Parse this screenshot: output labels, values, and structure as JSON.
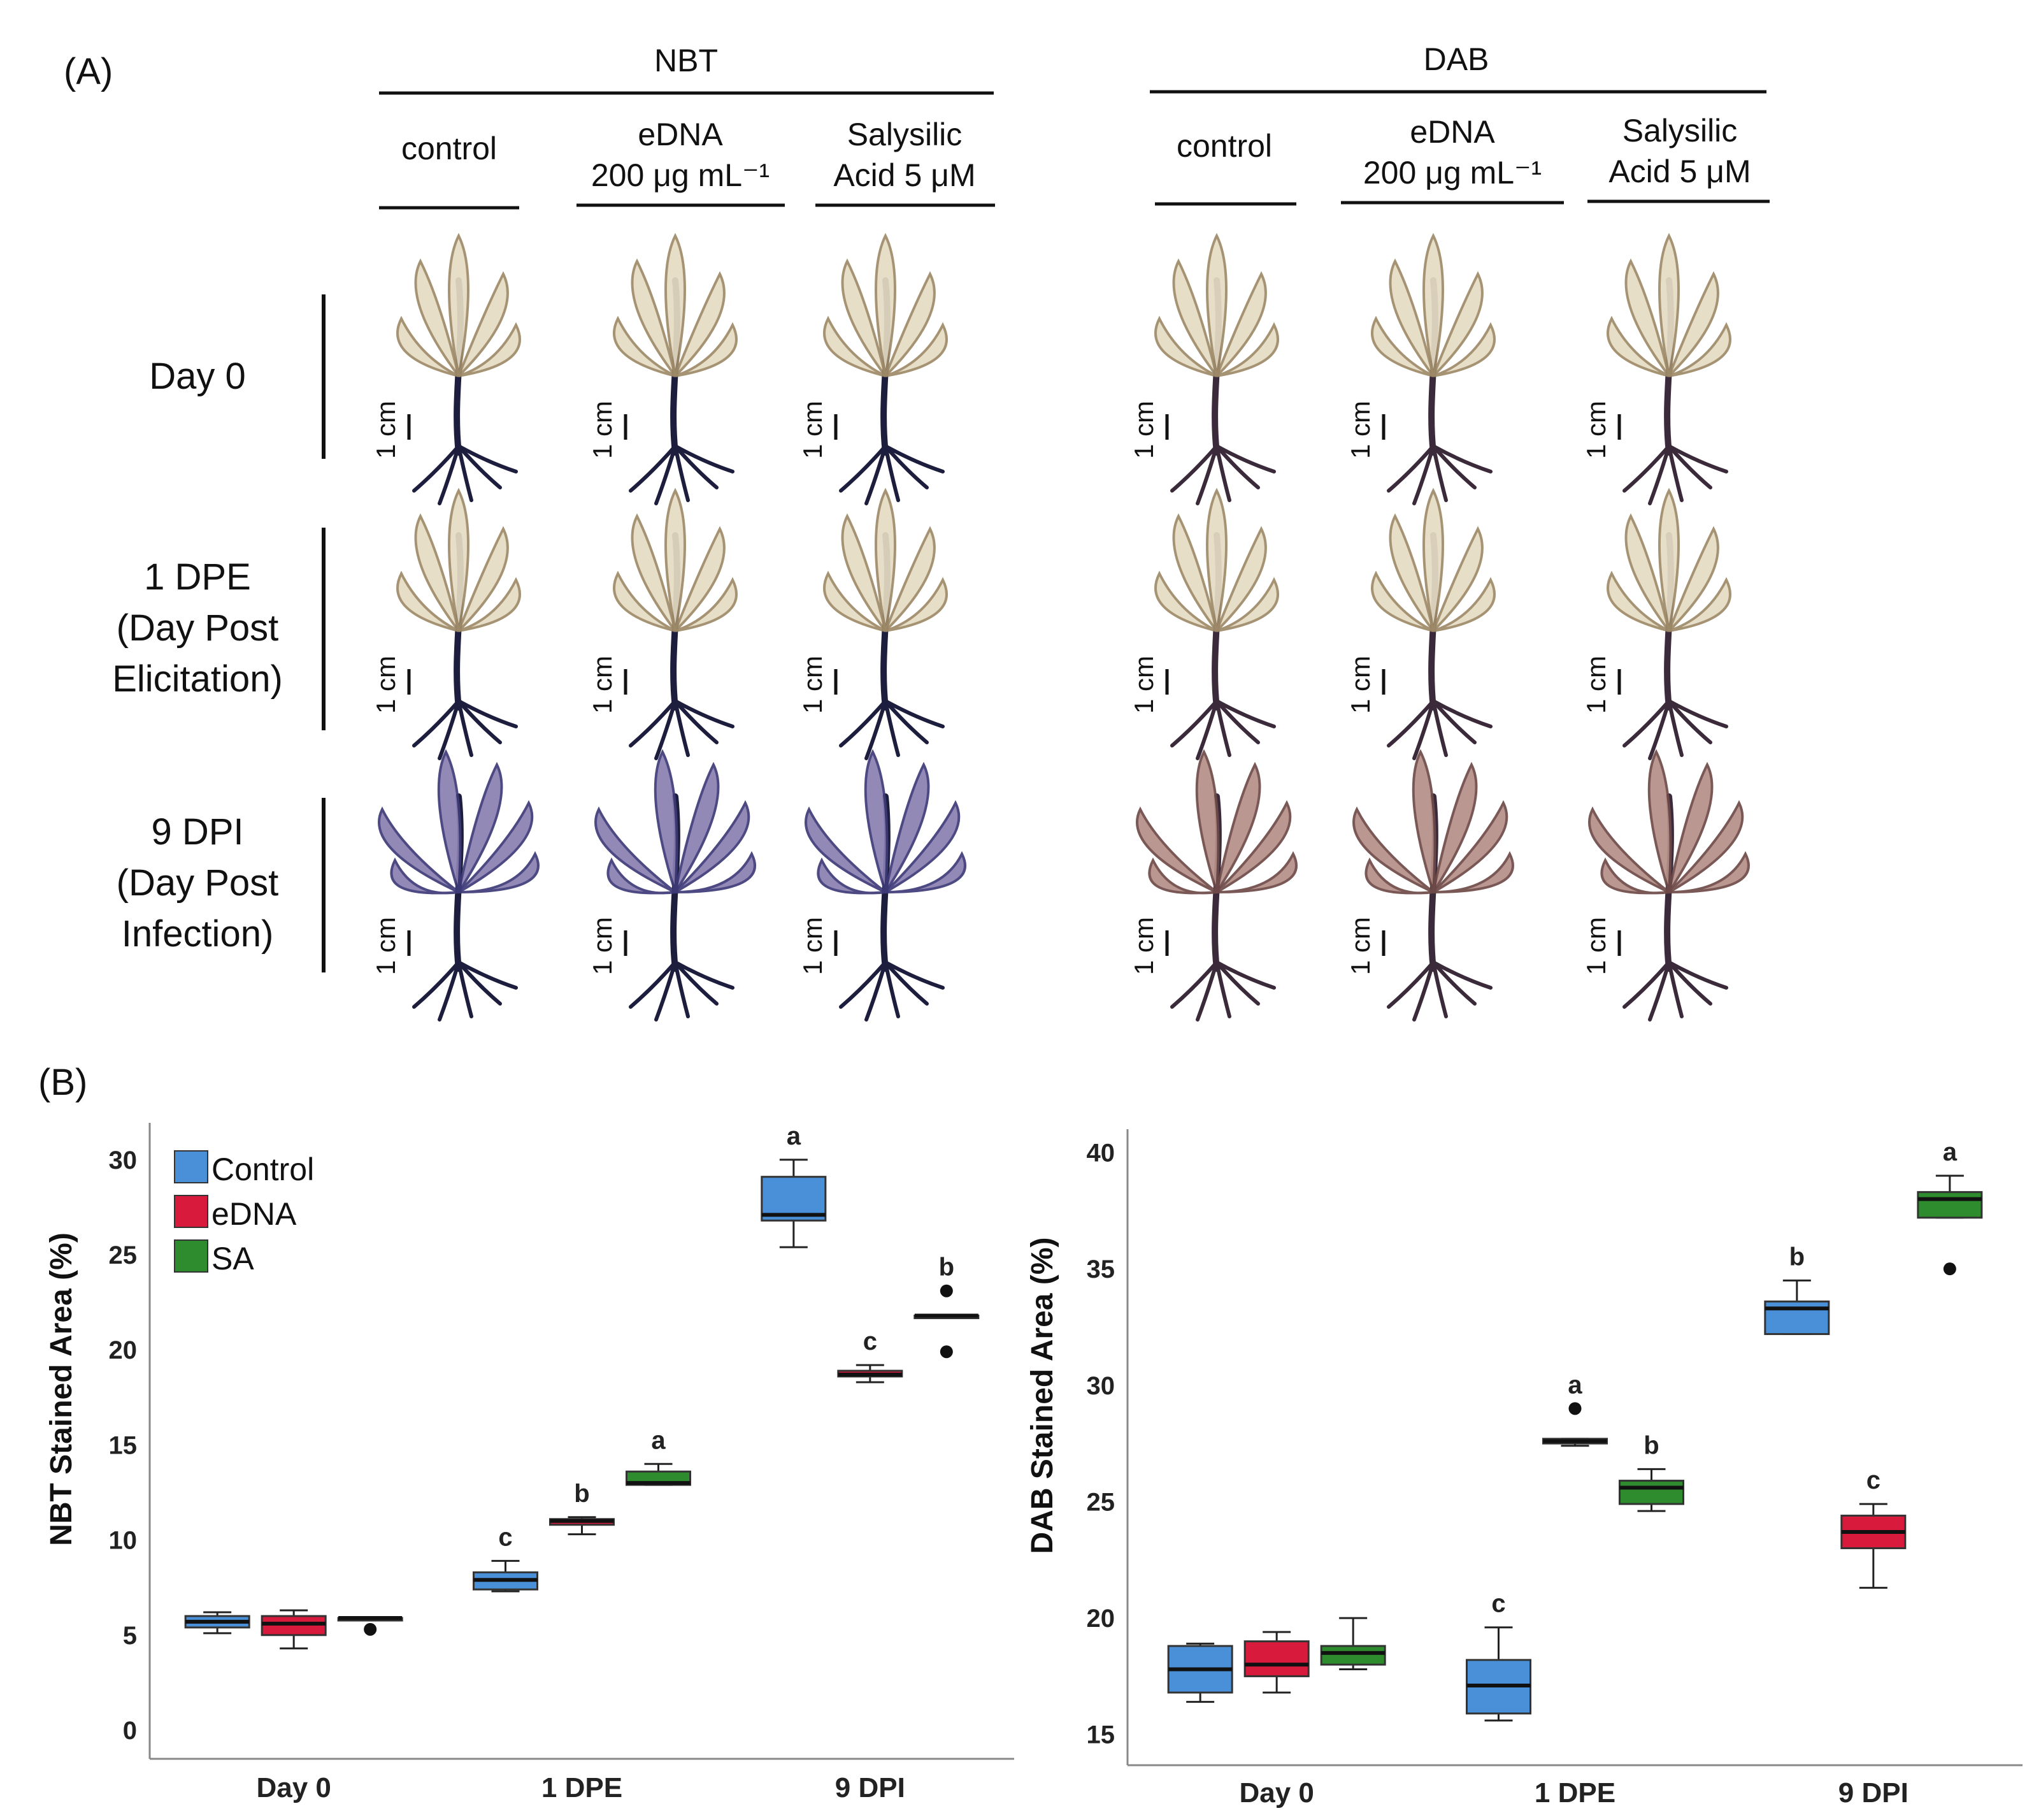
{
  "panel_a": {
    "label": "(A)",
    "groups": [
      {
        "title": "NBT",
        "columns": [
          {
            "line1": "control",
            "line2": ""
          },
          {
            "line1": "eDNA",
            "line2": "200 μg mL⁻¹"
          },
          {
            "line1": "Salysilic",
            "line2": "Acid 5  μM"
          }
        ]
      },
      {
        "title": "DAB",
        "columns": [
          {
            "line1": "control",
            "line2": ""
          },
          {
            "line1": "eDNA",
            "line2": "200 μg mL⁻¹"
          },
          {
            "line1": "Salysilic",
            "line2": "Acid 5  μM"
          }
        ]
      }
    ],
    "rows": [
      {
        "lines": [
          "Day 0"
        ]
      },
      {
        "lines": [
          "1 DPE",
          "(Day Post",
          "Elicitation)"
        ]
      },
      {
        "lines": [
          "9 DPI",
          "(Day Post",
          "Infection)"
        ]
      }
    ],
    "scale_bar_label": "1 cm"
  },
  "panel_b": {
    "label": "(B)",
    "legend": [
      {
        "name": "Control",
        "color": "#4a90d9"
      },
      {
        "name": "eDNA",
        "color": "#d81b3c"
      },
      {
        "name": "SA",
        "color": "#2e8b2e"
      }
    ]
  },
  "chart_data": [
    {
      "type": "box",
      "ylabel": "NBT Stained Area (%)",
      "xlabel": "",
      "ylim": [
        0,
        31
      ],
      "yticks": [
        0,
        5,
        10,
        15,
        20,
        25,
        30
      ],
      "categories": [
        "Day 0",
        "1 DPE",
        "9 DPI"
      ],
      "series": [
        {
          "name": "Control",
          "color": "#4a90d9",
          "boxes": [
            {
              "min": 5.1,
              "q1": 5.4,
              "median": 5.7,
              "q3": 6.0,
              "max": 6.2,
              "outliers": [],
              "letter": ""
            },
            {
              "min": 7.3,
              "q1": 7.4,
              "median": 7.9,
              "q3": 8.3,
              "max": 8.9,
              "outliers": [],
              "letter": "c"
            },
            {
              "min": 25.4,
              "q1": 26.8,
              "median": 27.1,
              "q3": 29.1,
              "max": 30.0,
              "outliers": [],
              "letter": "a"
            }
          ]
        },
        {
          "name": "eDNA",
          "color": "#d81b3c",
          "boxes": [
            {
              "min": 4.3,
              "q1": 5.0,
              "median": 5.6,
              "q3": 6.0,
              "max": 6.3,
              "outliers": [],
              "letter": ""
            },
            {
              "min": 10.3,
              "q1": 10.8,
              "median": 11.0,
              "q3": 11.1,
              "max": 11.2,
              "outliers": [],
              "letter": "b"
            },
            {
              "min": 18.3,
              "q1": 18.6,
              "median": 18.7,
              "q3": 18.9,
              "max": 19.2,
              "outliers": [],
              "letter": "c"
            }
          ]
        },
        {
          "name": "SA",
          "color": "#2e8b2e",
          "boxes": [
            {
              "min": 5.9,
              "q1": 5.9,
              "median": 5.9,
              "q3": 5.9,
              "max": 5.9,
              "outliers": [
                5.3
              ],
              "letter": ""
            },
            {
              "min": 12.9,
              "q1": 12.9,
              "median": 13.0,
              "q3": 13.6,
              "max": 14.0,
              "outliers": [],
              "letter": "a"
            },
            {
              "min": 21.8,
              "q1": 21.8,
              "median": 21.8,
              "q3": 21.8,
              "max": 21.8,
              "outliers": [
                23.1,
                19.9
              ],
              "letter": "b"
            }
          ]
        }
      ]
    },
    {
      "type": "box",
      "ylabel": "DAB Stained Area (%)",
      "xlabel": "",
      "ylim": [
        14.5,
        41
      ],
      "yticks": [
        15,
        20,
        25,
        30,
        35,
        40
      ],
      "categories": [
        "Day 0",
        "1 DPE",
        "9 DPI"
      ],
      "series": [
        {
          "name": "Control",
          "color": "#4a90d9",
          "boxes": [
            {
              "min": 16.4,
              "q1": 16.8,
              "median": 17.8,
              "q3": 18.8,
              "max": 18.9,
              "outliers": [],
              "letter": ""
            },
            {
              "min": 15.6,
              "q1": 15.9,
              "median": 17.1,
              "q3": 18.2,
              "max": 19.6,
              "outliers": [],
              "letter": "c"
            },
            {
              "min": 32.2,
              "q1": 32.2,
              "median": 33.3,
              "q3": 33.6,
              "max": 34.5,
              "outliers": [],
              "letter": "b"
            }
          ]
        },
        {
          "name": "eDNA",
          "color": "#d81b3c",
          "boxes": [
            {
              "min": 16.8,
              "q1": 17.5,
              "median": 18.0,
              "q3": 19.0,
              "max": 19.4,
              "outliers": [],
              "letter": ""
            },
            {
              "min": 27.4,
              "q1": 27.5,
              "median": 27.6,
              "q3": 27.7,
              "max": 27.7,
              "outliers": [
                29.0
              ],
              "letter": "a"
            },
            {
              "min": 21.3,
              "q1": 23.0,
              "median": 23.7,
              "q3": 24.4,
              "max": 24.9,
              "outliers": [],
              "letter": "c"
            }
          ]
        },
        {
          "name": "SA",
          "color": "#2e8b2e",
          "boxes": [
            {
              "min": 17.8,
              "q1": 18.0,
              "median": 18.5,
              "q3": 18.8,
              "max": 20.0,
              "outliers": [],
              "letter": ""
            },
            {
              "min": 24.6,
              "q1": 24.9,
              "median": 25.6,
              "q3": 25.9,
              "max": 26.4,
              "outliers": [],
              "letter": "b"
            },
            {
              "min": 37.2,
              "q1": 37.2,
              "median": 38.0,
              "q3": 38.3,
              "max": 39.0,
              "outliers": [
                35.0
              ],
              "letter": "a"
            }
          ]
        }
      ]
    }
  ]
}
